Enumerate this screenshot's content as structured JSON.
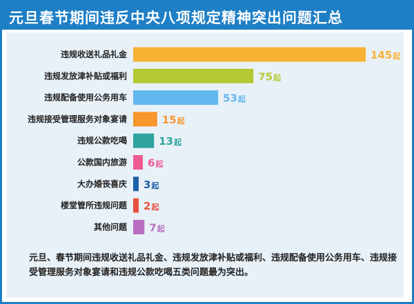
{
  "header": {
    "title": "元旦春节期间违反中央八项规定精神突出问题汇总",
    "color": "#1e7fc6"
  },
  "summary_text": "元旦、春节期间违规收送礼品礼金、违规发放津补贴或福利、违规配备使用公务用车、违规接受管理服务对象宴请和违规公款吃喝五类问题最为突出。",
  "value_unit": "起",
  "chart_data": {
    "type": "bar",
    "orientation": "horizontal",
    "title": "元旦春节期间违反中央八项规定精神突出问题汇总",
    "categories": [
      "违规收送礼品礼金",
      "违规发放津补贴或福利",
      "违规配备使用公务用车",
      "违规接受管理服务对象宴请",
      "违规公款吃喝",
      "公款国内旅游",
      "大办婚丧喜庆",
      "楼堂管所违规问题",
      "其他问题"
    ],
    "values": [
      145,
      75,
      53,
      15,
      13,
      6,
      3,
      2,
      7
    ],
    "value_labels": [
      "145",
      "75",
      "53",
      "15",
      "13",
      "6",
      "3",
      "2",
      "7"
    ],
    "colors": [
      "#f9b233",
      "#b5c834",
      "#62b7ee",
      "#f7962d",
      "#2fa39e",
      "#ef5a91",
      "#1f5fa8",
      "#e8523f",
      "#b86fc1"
    ],
    "grid": false,
    "legend": "none"
  }
}
